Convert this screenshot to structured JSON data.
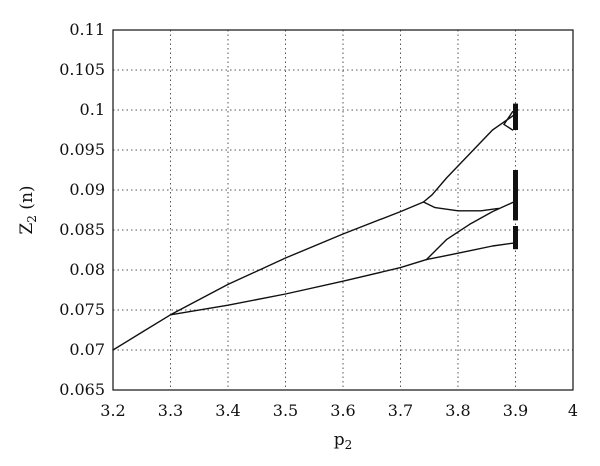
{
  "chart_data": {
    "type": "line",
    "title": "",
    "xlabel": "p",
    "xlabel_sub": "2",
    "ylabel": "Z",
    "ylabel_sub": "2",
    "ylabel_suffix": " (n)",
    "xlim": [
      3.2,
      4
    ],
    "ylim": [
      0.065,
      0.11
    ],
    "grid": true,
    "x_ticks": [
      3.2,
      3.3,
      3.4,
      3.5,
      3.6,
      3.7,
      3.8,
      3.9,
      4
    ],
    "x_tick_labels": [
      "3.2",
      "3.3",
      "3.4",
      "3.5",
      "3.6",
      "3.7",
      "3.8",
      "3.9",
      "4"
    ],
    "y_ticks": [
      0.065,
      0.07,
      0.075,
      0.08,
      0.085,
      0.09,
      0.095,
      0.1,
      0.105,
      0.11
    ],
    "y_tick_labels": [
      "0.065",
      "0.07",
      "0.075",
      "0.08",
      "0.085",
      "0.09",
      "0.095",
      "0.1",
      "0.105",
      "0.11"
    ],
    "series": [
      {
        "points": [
          [
            3.2,
            0.07
          ],
          [
            3.25,
            0.0722
          ],
          [
            3.3,
            0.0744
          ]
        ]
      },
      {
        "points": [
          [
            3.3,
            0.0744
          ],
          [
            3.4,
            0.0782
          ],
          [
            3.5,
            0.0815
          ],
          [
            3.6,
            0.0845
          ],
          [
            3.7,
            0.0873
          ],
          [
            3.74,
            0.0885
          ],
          [
            3.755,
            0.0894
          ],
          [
            3.78,
            0.0915
          ],
          [
            3.82,
            0.0945
          ],
          [
            3.86,
            0.0975
          ],
          [
            3.9,
            0.0995
          ]
        ]
      },
      {
        "points": [
          [
            3.74,
            0.0885
          ],
          [
            3.76,
            0.0878
          ],
          [
            3.8,
            0.0874
          ],
          [
            3.84,
            0.0874
          ],
          [
            3.87,
            0.0877
          ]
        ]
      },
      {
        "points": [
          [
            3.3,
            0.0744
          ],
          [
            3.4,
            0.0756
          ],
          [
            3.5,
            0.077
          ],
          [
            3.6,
            0.0786
          ],
          [
            3.7,
            0.0803
          ],
          [
            3.745,
            0.0813
          ]
        ]
      },
      {
        "points": [
          [
            3.745,
            0.0813
          ],
          [
            3.78,
            0.0838
          ],
          [
            3.82,
            0.0857
          ],
          [
            3.86,
            0.0873
          ],
          [
            3.9,
            0.0886
          ]
        ]
      },
      {
        "points": [
          [
            3.745,
            0.0813
          ],
          [
            3.78,
            0.0818
          ],
          [
            3.82,
            0.0824
          ],
          [
            3.86,
            0.083
          ],
          [
            3.9,
            0.0834
          ]
        ]
      },
      {
        "points": [
          [
            3.88,
            0.0982
          ],
          [
            3.895,
            0.0998
          ]
        ]
      },
      {
        "points": [
          [
            3.88,
            0.0982
          ],
          [
            3.895,
            0.0975
          ]
        ]
      }
    ],
    "chaotic_band": {
      "x": 3.9,
      "ranges": [
        [
          0.0975,
          0.1008
        ],
        [
          0.0862,
          0.0925
        ],
        [
          0.0826,
          0.0855
        ]
      ]
    }
  }
}
